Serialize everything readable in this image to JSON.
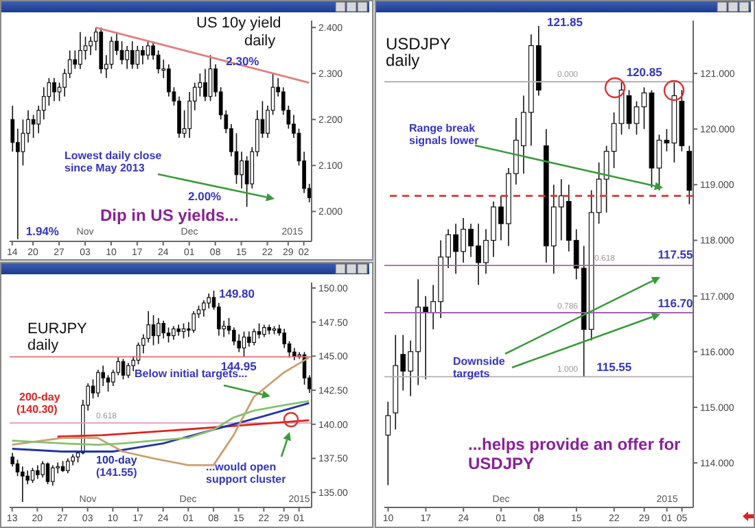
{
  "chart_data": [
    {
      "type": "candlestick",
      "title": "US 10y yield",
      "subtitle": "daily",
      "categories": [
        "14",
        null,
        null,
        null,
        "20",
        null,
        null,
        null,
        null,
        "27",
        null,
        null,
        null,
        null,
        "03",
        null,
        null,
        null,
        null,
        "10",
        null,
        null,
        null,
        null,
        "17",
        null,
        null,
        null,
        null,
        "24",
        null,
        null,
        null,
        null,
        "01",
        null,
        null,
        null,
        null,
        "08",
        null,
        null,
        null,
        null,
        "15",
        null,
        null,
        null,
        null,
        "22",
        null,
        null,
        null,
        "29",
        null,
        null,
        "02",
        null
      ],
      "ohlc": [
        [
          2.2,
          2.23,
          2.13,
          2.15
        ],
        [
          2.15,
          2.18,
          1.94,
          2.13
        ],
        [
          2.13,
          2.2,
          2.1,
          2.17
        ],
        [
          2.17,
          2.22,
          2.15,
          2.2
        ],
        [
          2.2,
          2.21,
          2.16,
          2.19
        ],
        [
          2.19,
          2.23,
          2.17,
          2.22
        ],
        [
          2.22,
          2.27,
          2.2,
          2.25
        ],
        [
          2.25,
          2.29,
          2.23,
          2.28
        ],
        [
          2.28,
          2.29,
          2.24,
          2.26
        ],
        [
          2.26,
          2.28,
          2.24,
          2.27
        ],
        [
          2.27,
          2.31,
          2.25,
          2.3
        ],
        [
          2.3,
          2.35,
          2.29,
          2.33
        ],
        [
          2.33,
          2.35,
          2.31,
          2.32
        ],
        [
          2.32,
          2.39,
          2.31,
          2.35
        ],
        [
          2.35,
          2.38,
          2.33,
          2.36
        ],
        [
          2.36,
          2.38,
          2.34,
          2.37
        ],
        [
          2.37,
          2.4,
          2.35,
          2.39
        ],
        [
          2.39,
          2.4,
          2.3,
          2.31
        ],
        [
          2.31,
          2.34,
          2.29,
          2.32
        ],
        [
          2.32,
          2.38,
          2.31,
          2.37
        ],
        [
          2.37,
          2.39,
          2.34,
          2.35
        ],
        [
          2.35,
          2.37,
          2.32,
          2.33
        ],
        [
          2.33,
          2.36,
          2.31,
          2.35
        ],
        [
          2.35,
          2.37,
          2.31,
          2.32
        ],
        [
          2.32,
          2.36,
          2.31,
          2.35
        ],
        [
          2.35,
          2.36,
          2.32,
          2.34
        ],
        [
          2.34,
          2.37,
          2.33,
          2.36
        ],
        [
          2.36,
          2.37,
          2.33,
          2.34
        ],
        [
          2.34,
          2.35,
          2.3,
          2.31
        ],
        [
          2.31,
          2.33,
          2.29,
          2.31
        ],
        [
          2.31,
          2.32,
          2.25,
          2.26
        ],
        [
          2.26,
          2.27,
          2.23,
          2.24
        ],
        [
          2.24,
          2.25,
          2.16,
          2.17
        ],
        [
          2.17,
          2.22,
          2.16,
          2.18
        ],
        [
          2.18,
          2.26,
          2.16,
          2.24
        ],
        [
          2.24,
          2.28,
          2.22,
          2.27
        ],
        [
          2.27,
          2.3,
          2.25,
          2.28
        ],
        [
          2.28,
          2.31,
          2.24,
          2.25
        ],
        [
          2.25,
          2.34,
          2.24,
          2.31
        ],
        [
          2.31,
          2.32,
          2.25,
          2.26
        ],
        [
          2.26,
          2.27,
          2.2,
          2.21
        ],
        [
          2.21,
          2.22,
          2.17,
          2.18
        ],
        [
          2.18,
          2.19,
          2.12,
          2.13
        ],
        [
          2.13,
          2.17,
          2.06,
          2.08
        ],
        [
          2.08,
          2.13,
          2.05,
          2.11
        ],
        [
          2.11,
          2.12,
          2.01,
          2.06
        ],
        [
          2.06,
          2.14,
          2.05,
          2.13
        ],
        [
          2.13,
          2.22,
          2.12,
          2.2
        ],
        [
          2.2,
          2.24,
          2.16,
          2.17
        ],
        [
          2.17,
          2.23,
          2.16,
          2.22
        ],
        [
          2.22,
          2.3,
          2.21,
          2.27
        ],
        [
          2.27,
          2.29,
          2.25,
          2.26
        ],
        [
          2.26,
          2.27,
          2.21,
          2.22
        ],
        [
          2.22,
          2.23,
          2.18,
          2.19
        ],
        [
          2.19,
          2.21,
          2.16,
          2.17
        ],
        [
          2.17,
          2.18,
          2.1,
          2.11
        ],
        [
          2.11,
          2.13,
          2.04,
          2.05
        ],
        [
          2.05,
          2.06,
          2.02,
          2.03
        ]
      ],
      "series": [
        {
          "type": "line",
          "color": "#e08080",
          "values": [
            null,
            null,
            null,
            null,
            null,
            null,
            null,
            null,
            null,
            null,
            null,
            null,
            null,
            null,
            null,
            null,
            2.4,
            null,
            null,
            null,
            null,
            null,
            null,
            null,
            null,
            null,
            null,
            null,
            null,
            null,
            null,
            null,
            null,
            null,
            null,
            null,
            null,
            null,
            null,
            null,
            null,
            null,
            null,
            null,
            null,
            null,
            null,
            null,
            null,
            null,
            null,
            null,
            null,
            null,
            null,
            null,
            null,
            2.28
          ]
        }
      ],
      "ylim": [
        1.935,
        2.415
      ],
      "yticks": [
        {
          "value": 2.0,
          "label": "2.000"
        },
        {
          "value": 2.1,
          "label": "2.100"
        },
        {
          "value": 2.2,
          "label": "2.200"
        },
        {
          "value": 2.3,
          "label": "2.300"
        },
        {
          "value": 2.4,
          "label": "2.400"
        }
      ],
      "annotations": [
        "Nov",
        "Dec",
        "2015",
        {
          "text": "2.30%",
          "x": "22",
          "y": 2.3
        },
        {
          "text": "1.94%",
          "x": "14",
          "y": 1.94
        },
        "2.00%",
        "Lowest daily close since May 2013",
        "Dip in US yields..."
      ]
    },
    {
      "type": "candlestick",
      "title": "EURJPY",
      "subtitle": "daily",
      "categories": [
        "13",
        null,
        null,
        null,
        null,
        "20",
        null,
        null,
        null,
        null,
        "27",
        null,
        null,
        null,
        null,
        "03",
        null,
        null,
        null,
        null,
        "10",
        null,
        null,
        null,
        null,
        "17",
        null,
        null,
        null,
        null,
        "24",
        null,
        null,
        null,
        null,
        "01",
        null,
        null,
        null,
        null,
        "08",
        null,
        null,
        null,
        null,
        "15",
        null,
        null,
        null,
        null,
        "22",
        null,
        null,
        null,
        "29",
        null,
        null,
        "01",
        null,
        null
      ],
      "ohlc": [
        [
          137.6,
          137.9,
          136.9,
          137.1
        ],
        [
          137.1,
          137.4,
          136.2,
          136.5
        ],
        [
          136.5,
          136.9,
          134.3,
          136.2
        ],
        [
          136.2,
          136.6,
          135.6,
          135.9
        ],
        [
          135.9,
          136.8,
          135.7,
          136.6
        ],
        [
          136.6,
          137.0,
          136.0,
          136.3
        ],
        [
          136.3,
          137.3,
          136.1,
          137.1
        ],
        [
          137.1,
          137.2,
          135.6,
          135.8
        ],
        [
          135.8,
          137.0,
          135.5,
          136.8
        ],
        [
          136.8,
          137.2,
          136.4,
          136.9
        ],
        [
          136.9,
          137.3,
          136.5,
          136.6
        ],
        [
          136.6,
          137.5,
          136.4,
          137.3
        ],
        [
          137.3,
          137.8,
          137.0,
          137.6
        ],
        [
          137.6,
          138.0,
          137.2,
          137.9
        ],
        [
          137.9,
          141.8,
          137.8,
          141.4
        ],
        [
          141.4,
          143.0,
          141.0,
          142.8
        ],
        [
          142.8,
          143.3,
          141.9,
          142.3
        ],
        [
          142.3,
          144.0,
          142.0,
          143.8
        ],
        [
          143.8,
          144.3,
          142.8,
          143.4
        ],
        [
          143.4,
          143.6,
          142.4,
          143.1
        ],
        [
          143.1,
          144.0,
          142.8,
          143.8
        ],
        [
          143.8,
          144.9,
          143.6,
          144.6
        ],
        [
          144.6,
          144.8,
          143.3,
          143.6
        ],
        [
          143.6,
          144.5,
          143.4,
          144.3
        ],
        [
          144.3,
          145.0,
          143.9,
          144.7
        ],
        [
          144.7,
          146.0,
          144.4,
          145.8
        ],
        [
          145.8,
          146.6,
          145.2,
          146.3
        ],
        [
          146.3,
          148.3,
          146.0,
          147.3
        ],
        [
          147.3,
          148.0,
          145.8,
          146.5
        ],
        [
          146.5,
          147.8,
          145.9,
          147.4
        ],
        [
          147.4,
          147.6,
          146.3,
          146.7
        ],
        [
          146.7,
          147.1,
          146.0,
          146.5
        ],
        [
          146.5,
          147.2,
          146.2,
          147.0
        ],
        [
          147.0,
          147.3,
          146.5,
          146.8
        ],
        [
          146.8,
          147.4,
          146.3,
          147.0
        ],
        [
          147.0,
          147.5,
          146.4,
          146.9
        ],
        [
          146.9,
          148.3,
          146.7,
          148.1
        ],
        [
          148.1,
          148.7,
          147.8,
          148.4
        ],
        [
          148.4,
          149.1,
          147.9,
          148.9
        ],
        [
          148.9,
          149.6,
          148.5,
          149.3
        ],
        [
          149.3,
          149.8,
          148.4,
          148.6
        ],
        [
          148.6,
          148.9,
          146.5,
          147.0
        ],
        [
          147.0,
          147.6,
          146.4,
          147.2
        ],
        [
          147.2,
          147.8,
          146.6,
          146.9
        ],
        [
          146.9,
          147.1,
          145.8,
          146.1
        ],
        [
          146.1,
          146.6,
          145.3,
          145.6
        ],
        [
          145.6,
          146.8,
          144.95,
          146.4
        ],
        [
          146.4,
          146.8,
          145.7,
          146.0
        ],
        [
          146.0,
          147.0,
          145.8,
          146.8
        ],
        [
          146.8,
          147.4,
          146.3,
          146.6
        ],
        [
          146.6,
          147.3,
          146.4,
          147.1
        ],
        [
          147.1,
          147.3,
          146.6,
          146.9
        ],
        [
          146.9,
          147.2,
          146.6,
          147.0
        ],
        [
          147.0,
          147.3,
          146.5,
          146.7
        ],
        [
          146.7,
          147.0,
          145.6,
          145.9
        ],
        [
          145.9,
          146.1,
          144.9,
          145.3
        ],
        [
          145.3,
          145.6,
          144.7,
          145.0
        ],
        [
          145.0,
          145.3,
          144.8,
          145.1
        ],
        [
          145.1,
          145.3,
          142.9,
          143.4
        ],
        [
          143.4,
          143.6,
          142.3,
          142.6
        ]
      ],
      "series": [
        {
          "type": "line",
          "name": "200-day",
          "color": "#dd2222",
          "values": [
            null,
            null,
            null,
            null,
            null,
            null,
            null,
            null,
            null,
            139.1,
            null,
            null,
            null,
            null,
            null,
            null,
            null,
            null,
            139.2,
            null,
            null,
            null,
            null,
            null,
            null,
            null,
            null,
            null,
            null,
            null,
            139.5,
            null,
            null,
            null,
            null,
            null,
            null,
            null,
            null,
            null,
            null,
            null,
            null,
            null,
            null,
            139.9,
            null,
            null,
            null,
            null,
            null,
            null,
            null,
            null,
            null,
            null,
            null,
            null,
            null,
            140.3
          ]
        },
        {
          "type": "line",
          "name": "100-day",
          "color": "#2233aa",
          "values": [
            138.2,
            null,
            null,
            null,
            null,
            null,
            null,
            null,
            null,
            null,
            138.0,
            null,
            null,
            null,
            null,
            null,
            null,
            null,
            null,
            null,
            138.0,
            null,
            null,
            null,
            null,
            null,
            null,
            null,
            null,
            null,
            138.6,
            null,
            null,
            null,
            null,
            null,
            null,
            null,
            null,
            null,
            139.6,
            null,
            null,
            null,
            null,
            null,
            null,
            null,
            null,
            null,
            140.6,
            null,
            null,
            null,
            null,
            null,
            null,
            null,
            null,
            141.55
          ]
        },
        {
          "type": "line",
          "color": "#c8a070",
          "values": [
            138.5,
            null,
            null,
            null,
            null,
            null,
            null,
            null,
            null,
            null,
            139.0,
            null,
            null,
            null,
            null,
            null,
            null,
            139.0,
            null,
            null,
            null,
            null,
            138.0,
            null,
            null,
            null,
            null,
            null,
            137.5,
            null,
            null,
            null,
            null,
            null,
            null,
            137.0,
            null,
            null,
            null,
            null,
            137.0,
            null,
            null,
            null,
            139.2,
            null,
            null,
            null,
            142.0,
            null,
            null,
            null,
            null,
            null,
            143.8,
            null,
            null,
            null,
            null,
            144.9
          ]
        },
        {
          "type": "line",
          "color": "#88c070",
          "values": [
            138.8,
            null,
            null,
            null,
            null,
            null,
            null,
            null,
            null,
            null,
            138.6,
            null,
            null,
            null,
            null,
            null,
            null,
            138.5,
            null,
            null,
            null,
            null,
            138.6,
            null,
            null,
            null,
            null,
            null,
            138.8,
            null,
            null,
            null,
            null,
            null,
            null,
            139.0,
            null,
            null,
            null,
            null,
            139.6,
            null,
            null,
            null,
            140.5,
            null,
            null,
            null,
            141.0,
            null,
            null,
            null,
            null,
            null,
            141.4,
            null,
            null,
            null,
            null,
            141.7
          ]
        }
      ],
      "ylim": [
        133.9,
        150.4
      ],
      "yticks": [
        {
          "value": 135,
          "label": "135.00"
        },
        {
          "value": 137.5,
          "label": "137.50"
        },
        {
          "value": 140,
          "label": "140.00"
        },
        {
          "value": 142.5,
          "label": "142.50"
        },
        {
          "value": 145,
          "label": "145.00"
        },
        {
          "value": 147.5,
          "label": "147.50"
        },
        {
          "value": 150,
          "label": "150.00"
        }
      ],
      "ref_lines": [
        {
          "axis": "y",
          "value": 144.95,
          "color": "#e07070"
        },
        {
          "axis": "y",
          "value": 140.1,
          "color": "#e0a0c0"
        }
      ],
      "annotations": [
        "Nov",
        "Dec",
        "2015",
        {
          "text": "149.80",
          "x": "08",
          "y": 149.8
        },
        {
          "text": "144.95",
          "x": "15",
          "y": 144.95
        },
        "Below initial targets...",
        "(140.30)",
        "(141.55)",
        "...would open support cluster",
        "0.618"
      ]
    },
    {
      "type": "candlestick",
      "title": "USDJPY",
      "subtitle": "daily",
      "categories": [
        "10",
        null,
        null,
        null,
        null,
        "17",
        null,
        null,
        null,
        null,
        "24",
        null,
        null,
        null,
        null,
        "01",
        null,
        null,
        null,
        null,
        "08",
        null,
        null,
        null,
        null,
        "15",
        null,
        null,
        null,
        null,
        "22",
        null,
        null,
        null,
        "29",
        null,
        null,
        "01",
        null,
        "05",
        null
      ],
      "ohlc": [
        [
          114.5,
          115.1,
          113.6,
          114.85
        ],
        [
          114.9,
          116.3,
          114.6,
          115.75
        ],
        [
          115.95,
          116.3,
          115.3,
          115.65
        ],
        [
          115.65,
          116.2,
          115.2,
          116.0
        ],
        [
          116.0,
          117.3,
          115.4,
          116.8
        ],
        [
          116.8,
          117.0,
          115.5,
          116.7
        ],
        [
          116.7,
          117.2,
          116.4,
          116.9
        ],
        [
          116.9,
          118.0,
          116.6,
          117.7
        ],
        [
          117.7,
          118.2,
          117.5,
          118.1
        ],
        [
          118.1,
          118.3,
          117.4,
          117.8
        ],
        [
          117.8,
          118.4,
          117.6,
          118.2
        ],
        [
          118.2,
          118.3,
          117.7,
          117.9
        ],
        [
          117.9,
          118.3,
          117.2,
          117.6
        ],
        [
          117.6,
          118.2,
          117.4,
          118.0
        ],
        [
          118.0,
          118.7,
          117.7,
          118.6
        ],
        [
          118.6,
          118.8,
          118.0,
          118.3
        ],
        [
          118.3,
          119.3,
          117.9,
          119.2
        ],
        [
          119.2,
          120.2,
          119.0,
          119.8
        ],
        [
          119.7,
          120.6,
          119.2,
          120.3
        ],
        [
          120.3,
          121.7,
          119.7,
          121.5
        ],
        [
          121.5,
          121.85,
          120.6,
          120.7
        ],
        [
          119.7,
          120.0,
          117.6,
          117.9
        ],
        [
          117.9,
          119.0,
          117.4,
          118.6
        ],
        [
          118.6,
          119.1,
          118.0,
          118.8
        ],
        [
          118.7,
          119.0,
          117.8,
          118.0
        ],
        [
          118.0,
          118.2,
          117.3,
          117.5
        ],
        [
          117.5,
          117.9,
          115.55,
          116.4
        ],
        [
          116.4,
          118.9,
          116.2,
          118.5
        ],
        [
          118.5,
          119.4,
          118.3,
          119.1
        ],
        [
          119.1,
          119.7,
          118.5,
          119.6
        ],
        [
          119.6,
          120.3,
          119.3,
          120.1
        ],
        [
          120.1,
          120.85,
          119.9,
          120.7
        ],
        [
          120.6,
          120.7,
          120.0,
          120.1
        ],
        [
          120.1,
          120.5,
          119.9,
          120.4
        ],
        [
          120.4,
          120.75,
          120.0,
          120.65
        ],
        [
          120.65,
          120.7,
          118.95,
          119.3
        ],
        [
          119.3,
          119.9,
          118.9,
          119.8
        ],
        [
          119.8,
          120.0,
          119.6,
          119.75
        ],
        [
          119.75,
          120.85,
          119.4,
          120.6
        ],
        [
          120.5,
          120.7,
          119.6,
          119.7
        ],
        [
          119.6,
          119.7,
          118.65,
          118.9
        ]
      ],
      "ylim": [
        113.2,
        121.95
      ],
      "yticks": [
        {
          "value": 114,
          "label": "114.000"
        },
        {
          "value": 115,
          "label": "115.000"
        },
        {
          "value": 116,
          "label": "116.000"
        },
        {
          "value": 117,
          "label": "117.000"
        },
        {
          "value": 118,
          "label": "118.000"
        },
        {
          "value": 119,
          "label": "119.000"
        },
        {
          "value": 120,
          "label": "120.000"
        },
        {
          "value": 121,
          "label": "121.000"
        }
      ],
      "ref_lines": [
        {
          "axis": "y",
          "value": 120.85,
          "color": "#b0b0b0"
        },
        {
          "axis": "y",
          "value": 118.8,
          "color": "#dd3333",
          "line_style": "dashed"
        },
        {
          "axis": "y",
          "value": 117.55,
          "color": "#a060b0"
        },
        {
          "axis": "y",
          "value": 116.7,
          "color": "#a060b0"
        },
        {
          "axis": "y",
          "value": 115.55,
          "color": "#b0b0b0"
        }
      ],
      "annotations": [
        "Dec",
        "2015",
        {
          "text": "121.85",
          "x": "08",
          "y": 121.85
        },
        {
          "text": "120.85",
          "x": "29",
          "y": 120.85
        },
        {
          "text": "117.55",
          "x": "05",
          "y": 117.55
        },
        {
          "text": "116.70",
          "x": "05",
          "y": 116.7
        },
        {
          "text": "115.55",
          "x": "22",
          "y": 115.55
        },
        "Range break signals lower",
        "Downside targets",
        "...helps provide an offer for USDJPY",
        "0.000",
        "0.618",
        "0.786",
        "1.000"
      ]
    }
  ]
}
